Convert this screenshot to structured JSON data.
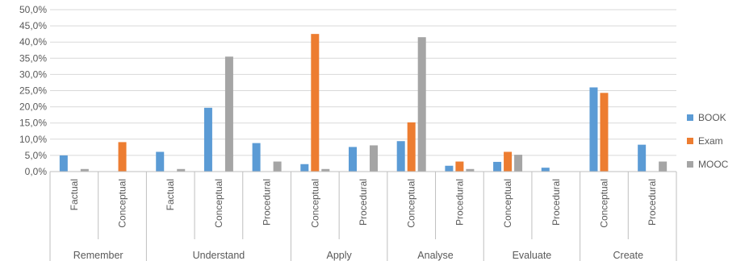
{
  "chart_data": {
    "type": "bar",
    "title": "",
    "xlabel": "",
    "ylabel": "",
    "ylim": [
      0,
      50
    ],
    "y_ticks": [
      "0,0%",
      "5,0%",
      "10,0%",
      "15,0%",
      "20,0%",
      "25,0%",
      "30,0%",
      "35,0%",
      "40,0%",
      "45,0%",
      "50,0%"
    ],
    "grid": true,
    "legend_position": "right",
    "groups": [
      {
        "name": "Remember",
        "categories": [
          "Factual",
          "Conceptual"
        ]
      },
      {
        "name": "Understand",
        "categories": [
          "Factual",
          "Conceptual",
          "Procedural"
        ]
      },
      {
        "name": "Apply",
        "categories": [
          "Conceptual",
          "Procedural"
        ]
      },
      {
        "name": "Analyse",
        "categories": [
          "Conceptual",
          "Procedural"
        ]
      },
      {
        "name": "Evaluate",
        "categories": [
          "Conceptual",
          "Procedural"
        ]
      },
      {
        "name": "Create",
        "categories": [
          "Conceptual",
          "Procedural"
        ]
      }
    ],
    "series": [
      {
        "name": "BOOK",
        "color": "#5b9bd5",
        "values": [
          5.0,
          0,
          6.1,
          19.7,
          8.8,
          2.3,
          7.6,
          9.4,
          1.8,
          3.0,
          1.2,
          26.0,
          8.3
        ]
      },
      {
        "name": "Exam",
        "color": "#ed7d31",
        "values": [
          0,
          9.1,
          0,
          0,
          0,
          42.5,
          0,
          15.2,
          3.1,
          6.1,
          0,
          24.3,
          0
        ]
      },
      {
        "name": "MOOC",
        "color": "#a5a5a5",
        "values": [
          0.8,
          0,
          0.8,
          35.5,
          3.1,
          0.8,
          8.1,
          41.5,
          0.8,
          5.2,
          0,
          0,
          3.1
        ]
      }
    ]
  }
}
